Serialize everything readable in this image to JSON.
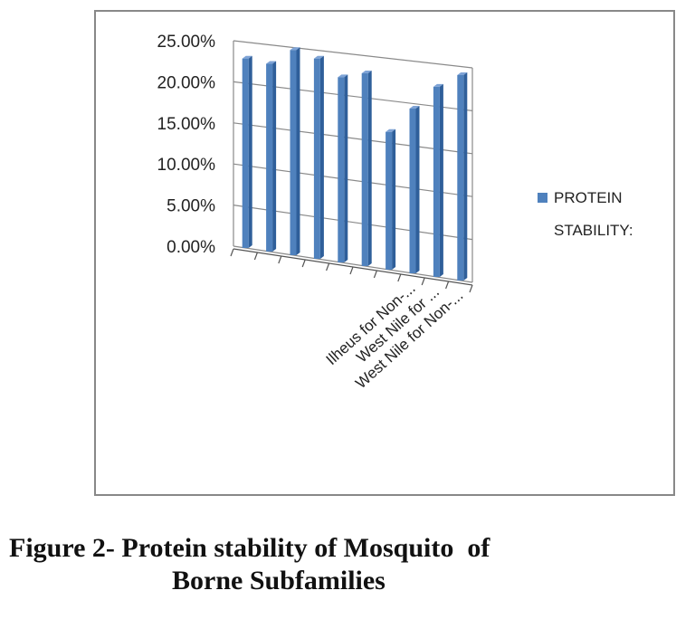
{
  "chart_data": {
    "type": "bar",
    "categories": [
      "",
      "",
      "",
      "",
      "",
      "",
      "",
      "Ilheus for Non-...",
      "West  Nile for ...",
      "West  Nile for Non-..."
    ],
    "series": [
      {
        "name": "PROTEIN STABILITY:",
        "values": [
          0.23,
          0.227,
          0.247,
          0.24,
          0.221,
          0.229,
          0.163,
          0.194,
          0.223,
          0.24
        ],
        "color": "#4f81bd"
      }
    ],
    "y_ticks": [
      "25.00%",
      "20.00%",
      "15.00%",
      "10.00%",
      "5.00%",
      "0.00%"
    ],
    "ylim": [
      0,
      0.25
    ],
    "grid": true,
    "view": "3d-perspective",
    "legend": {
      "position": "right",
      "lines": [
        "PROTEIN",
        "STABILITY:"
      ]
    }
  },
  "caption": {
    "line1": "Figure 2- Protein stability of Mosquito  of",
    "line2": "Borne Subfamilies"
  }
}
